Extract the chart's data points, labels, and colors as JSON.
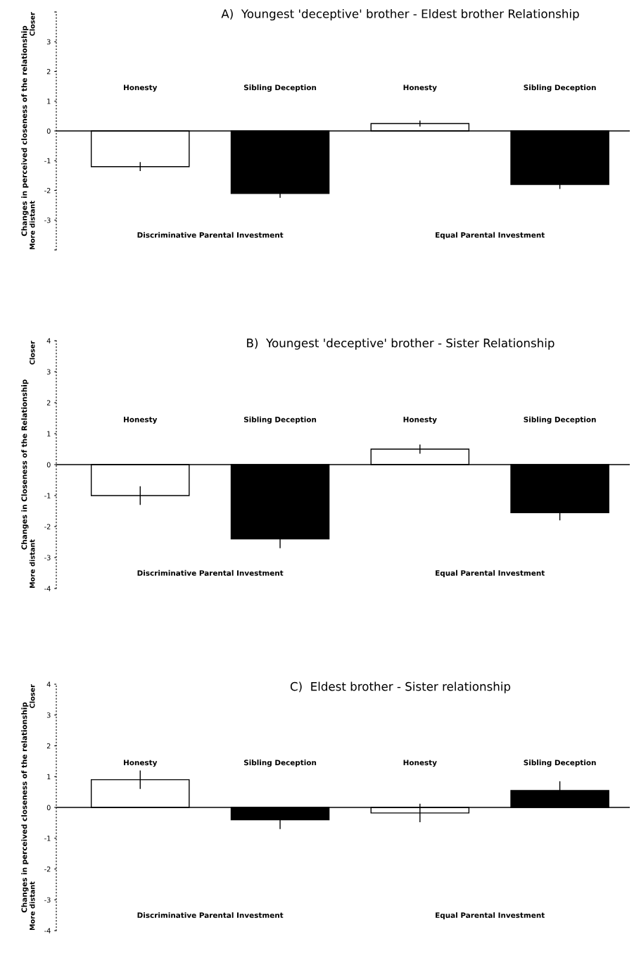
{
  "chart_data": [
    {
      "type": "bar",
      "title": "A)  Youngest 'deceptive' brother - Eldest brother Relationship",
      "ylabel": "Changes in perceived closeness of the relationship",
      "categories": [
        "Honesty",
        "Sibling Deception",
        "Honesty",
        "Sibling Deception"
      ],
      "ref_lines": [
        {
          "axis": "y",
          "value": 0,
          "color": "#000000"
        }
      ],
      "values": [
        -1.2,
        -2.1,
        0.25,
        -1.8
      ],
      "errors": [
        0.15,
        0.15,
        0.1,
        0.15
      ],
      "colors": [
        "#ffffff",
        "#000000",
        "#ffffff",
        "#000000"
      ],
      "ylim": [
        -4,
        4
      ],
      "yticks": [
        {
          "value": -4,
          "label": null
        },
        -3,
        -2,
        -1,
        0,
        1,
        2,
        3,
        {
          "value": 4,
          "label": null
        }
      ],
      "annotations": [
        "Closer",
        "More distant",
        "Discriminative Parental Investment",
        "Equal Parental Investment"
      ],
      "grid": false,
      "legend": false
    },
    {
      "type": "bar",
      "title": "B)  Youngest 'deceptive' brother - Sister Relationship",
      "ylabel": "Changes in Closeness of the Relationship",
      "categories": [
        "Honesty",
        "Sibling Deception",
        "Honesty",
        "Sibling Deception"
      ],
      "ref_lines": [
        {
          "axis": "y",
          "value": 0,
          "color": "#000000"
        }
      ],
      "values": [
        -1.0,
        -2.4,
        0.5,
        -1.55
      ],
      "errors": [
        0.3,
        0.3,
        0.15,
        0.25
      ],
      "colors": [
        "#ffffff",
        "#000000",
        "#ffffff",
        "#000000"
      ],
      "ylim": [
        -4,
        4
      ],
      "yticks": [
        -4,
        -3,
        -2,
        -1,
        0,
        1,
        2,
        3,
        4
      ],
      "annotations": [
        "Closer",
        "More distant",
        "Discriminative Parental Investment",
        "Equal Parental Investment"
      ],
      "grid": false,
      "legend": false
    },
    {
      "type": "bar",
      "title": "C)  Eldest brother - Sister relationship",
      "ylabel": "Changes in perceived closeness of the relationship",
      "categories": [
        "Honesty",
        "Sibling Deception",
        "Honesty",
        "Sibling Deception"
      ],
      "ref_lines": [
        {
          "axis": "y",
          "value": 0,
          "color": "#000000"
        }
      ],
      "values": [
        0.9,
        -0.4,
        -0.18,
        0.55
      ],
      "errors": [
        0.3,
        0.3,
        0.3,
        0.3
      ],
      "colors": [
        "#ffffff",
        "#000000",
        "#ffffff",
        "#000000"
      ],
      "ylim": [
        -4,
        4
      ],
      "yticks": [
        -4,
        -3,
        -2,
        -1,
        0,
        1,
        2,
        3,
        4
      ],
      "annotations": [
        "Closer",
        "More distant",
        "Discriminative Parental Investment",
        "Equal Parental Investment"
      ],
      "grid": false,
      "legend": false
    }
  ]
}
